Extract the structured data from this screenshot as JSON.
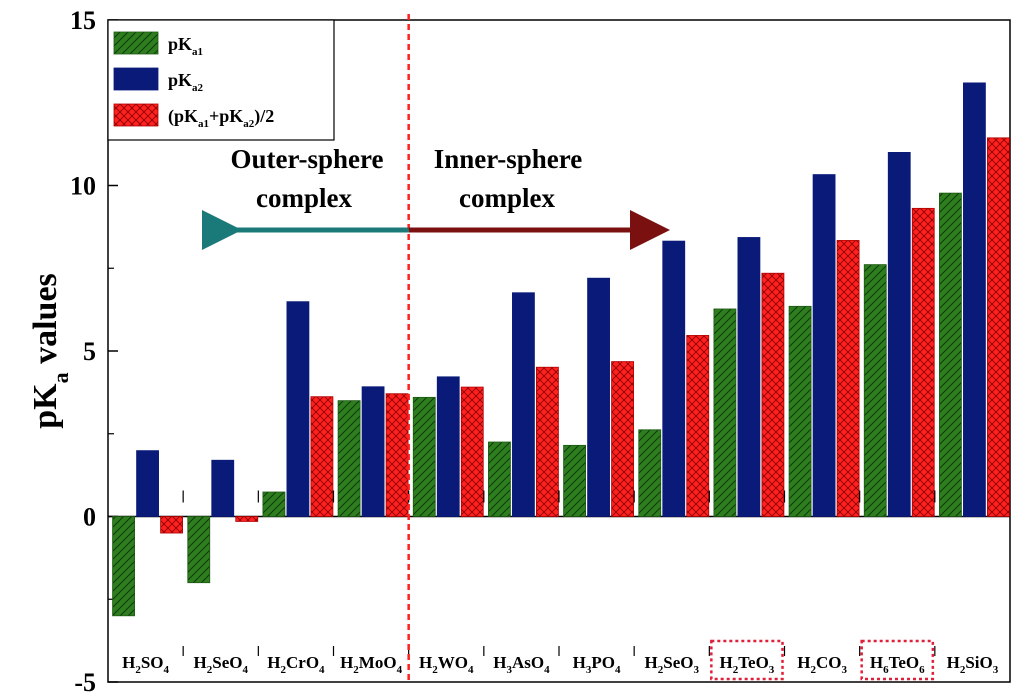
{
  "chart_data": {
    "type": "bar",
    "ylabel": "pK",
    "ylabel_sub": "a",
    "ylabel_tail": " values",
    "ylim": [
      -5,
      15
    ],
    "yticks": [
      -5,
      0,
      5,
      10,
      15
    ],
    "legend_position": "top-left",
    "categories": [
      {
        "main": "H",
        "parts": [
          [
            "2",
            "sub"
          ],
          [
            "SO",
            ""
          ],
          [
            "4",
            "sub"
          ]
        ]
      },
      {
        "main": "H",
        "parts": [
          [
            "2",
            "sub"
          ],
          [
            "SeO",
            ""
          ],
          [
            "4",
            "sub"
          ]
        ]
      },
      {
        "main": "H",
        "parts": [
          [
            "2",
            "sub"
          ],
          [
            "CrO",
            ""
          ],
          [
            "4",
            "sub"
          ]
        ]
      },
      {
        "main": "H",
        "parts": [
          [
            "2",
            "sub"
          ],
          [
            "MoO",
            ""
          ],
          [
            "4",
            "sub"
          ]
        ]
      },
      {
        "main": "H",
        "parts": [
          [
            "2",
            "sub"
          ],
          [
            "WO",
            ""
          ],
          [
            "4",
            "sub"
          ]
        ]
      },
      {
        "main": "H",
        "parts": [
          [
            "3",
            "sub"
          ],
          [
            "AsO",
            ""
          ],
          [
            "4",
            "sub"
          ]
        ]
      },
      {
        "main": "H",
        "parts": [
          [
            "3",
            "sub"
          ],
          [
            "PO",
            ""
          ],
          [
            "4",
            "sub"
          ]
        ]
      },
      {
        "main": "H",
        "parts": [
          [
            "2",
            "sub"
          ],
          [
            "SeO",
            ""
          ],
          [
            "3",
            "sub"
          ]
        ]
      },
      {
        "main": "H",
        "parts": [
          [
            "2",
            "sub"
          ],
          [
            "TeO",
            ""
          ],
          [
            "3",
            "sub"
          ]
        ]
      },
      {
        "main": "H",
        "parts": [
          [
            "2",
            "sub"
          ],
          [
            "CO",
            ""
          ],
          [
            "3",
            "sub"
          ]
        ]
      },
      {
        "main": "H",
        "parts": [
          [
            "6",
            "sub"
          ],
          [
            "TeO",
            ""
          ],
          [
            "6",
            "sub"
          ]
        ]
      },
      {
        "main": "H",
        "parts": [
          [
            "2",
            "sub"
          ],
          [
            "SiO",
            ""
          ],
          [
            "3",
            "sub"
          ]
        ]
      }
    ],
    "highlighted_categories": [
      8,
      10
    ],
    "series": [
      {
        "name_parts": [
          [
            "pK",
            ""
          ],
          [
            "a1",
            "sub"
          ]
        ],
        "color": "#2e7d1e",
        "pattern": "hatch",
        "values": [
          -3.0,
          -2.0,
          0.74,
          3.5,
          3.6,
          2.25,
          2.15,
          2.62,
          6.27,
          6.35,
          7.61,
          9.77
        ]
      },
      {
        "name_parts": [
          [
            "pK",
            ""
          ],
          [
            "a2",
            "sub"
          ]
        ],
        "color": "#0a1a78",
        "pattern": "solid",
        "values": [
          1.99,
          1.7,
          6.49,
          3.92,
          4.22,
          6.76,
          7.2,
          8.32,
          8.43,
          10.33,
          11.0,
          13.1
        ]
      },
      {
        "name_parts": [
          [
            "(pK",
            ""
          ],
          [
            "a1",
            "sub"
          ],
          [
            "+pK",
            ""
          ],
          [
            "a2",
            "sub"
          ],
          [
            ")/2",
            ""
          ]
        ],
        "color": "#ff2020",
        "pattern": "crosshatch",
        "values": [
          -0.5,
          -0.15,
          3.62,
          3.71,
          3.91,
          4.51,
          4.68,
          5.47,
          7.35,
          8.34,
          9.31,
          11.44
        ]
      }
    ],
    "annotations": {
      "outer_line1": "Outer-sphere",
      "outer_line2": "complex",
      "inner_line1": "Inner-sphere",
      "inner_line2": "complex"
    },
    "colors": {
      "outer_arrow": "#1a7a7a",
      "inner_arrow": "#7a1010",
      "divider": "#ff2020",
      "highlight_box": "#e0203a"
    }
  }
}
